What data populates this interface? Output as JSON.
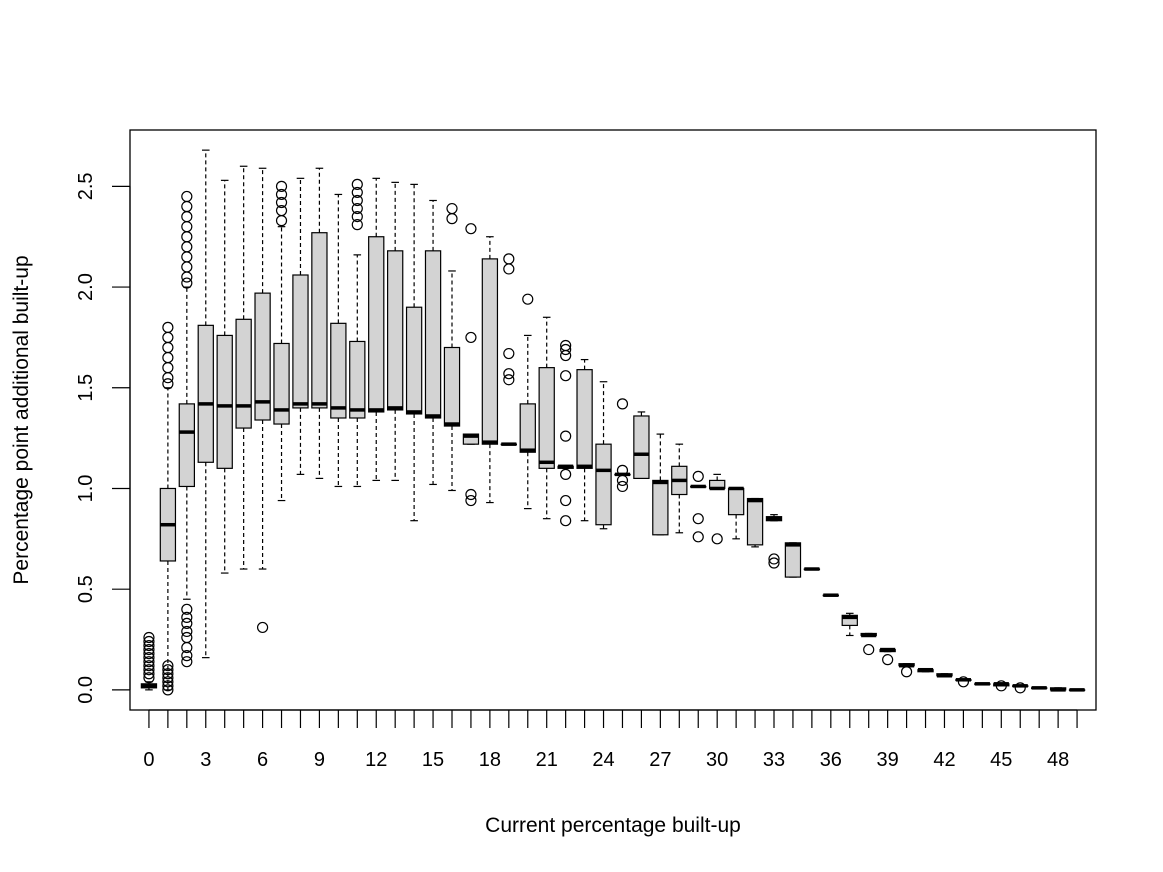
{
  "chart_data": {
    "type": "boxplot",
    "xlabel": "Current percentage built-up",
    "ylabel": "Percentage point additional built-up",
    "ylim": [
      -0.1,
      2.78
    ],
    "xlim": [
      -1,
      50
    ],
    "x_ticks": [
      0,
      3,
      6,
      9,
      12,
      15,
      18,
      21,
      24,
      27,
      30,
      33,
      36,
      39,
      42,
      45,
      48
    ],
    "y_ticks": [
      0.0,
      0.5,
      1.0,
      1.5,
      2.0,
      2.5
    ],
    "y_tick_labels": [
      "0.0",
      "0.5",
      "1.0",
      "1.5",
      "2.0",
      "2.5"
    ],
    "box_fill": "#d3d3d3",
    "boxes": [
      {
        "x": 0,
        "lw": 0.0,
        "q1": 0.01,
        "med": 0.02,
        "q3": 0.03,
        "uw": 0.04,
        "outliers": [
          0.06,
          0.08,
          0.1,
          0.12,
          0.14,
          0.16,
          0.18,
          0.2,
          0.22,
          0.24,
          0.26
        ]
      },
      {
        "x": 1,
        "lw": 0.0,
        "q1": 0.64,
        "med": 0.82,
        "q3": 1.0,
        "uw": 1.5,
        "outliers": [
          0.0,
          0.02,
          0.04,
          0.06,
          0.08,
          0.1,
          0.12,
          1.52,
          1.55,
          1.6,
          1.65,
          1.7,
          1.75,
          1.8
        ]
      },
      {
        "x": 2,
        "lw": 0.45,
        "q1": 1.01,
        "med": 1.28,
        "q3": 1.42,
        "uw": 2.0,
        "outliers": [
          0.14,
          0.17,
          0.21,
          0.26,
          0.29,
          0.33,
          0.36,
          0.4,
          2.02,
          2.05,
          2.1,
          2.15,
          2.2,
          2.25,
          2.3,
          2.35,
          2.4,
          2.45
        ]
      },
      {
        "x": 3,
        "lw": 0.16,
        "q1": 1.13,
        "med": 1.42,
        "q3": 1.81,
        "uw": 2.68,
        "outliers": []
      },
      {
        "x": 4,
        "lw": 0.58,
        "q1": 1.1,
        "med": 1.41,
        "q3": 1.76,
        "uw": 2.53,
        "outliers": []
      },
      {
        "x": 5,
        "lw": 0.6,
        "q1": 1.3,
        "med": 1.41,
        "q3": 1.84,
        "uw": 2.6,
        "outliers": []
      },
      {
        "x": 6,
        "lw": 0.6,
        "q1": 1.34,
        "med": 1.43,
        "q3": 1.97,
        "uw": 2.59,
        "outliers": [
          0.31
        ]
      },
      {
        "x": 7,
        "lw": 0.94,
        "q1": 1.32,
        "med": 1.39,
        "q3": 1.72,
        "uw": 2.3,
        "outliers": [
          2.33,
          2.38,
          2.42,
          2.46,
          2.5
        ]
      },
      {
        "x": 8,
        "lw": 1.07,
        "q1": 1.4,
        "med": 1.42,
        "q3": 2.06,
        "uw": 2.54,
        "outliers": []
      },
      {
        "x": 9,
        "lw": 1.05,
        "q1": 1.4,
        "med": 1.42,
        "q3": 2.27,
        "uw": 2.59,
        "outliers": []
      },
      {
        "x": 10,
        "lw": 1.01,
        "q1": 1.35,
        "med": 1.4,
        "q3": 1.82,
        "uw": 2.46,
        "outliers": []
      },
      {
        "x": 11,
        "lw": 1.01,
        "q1": 1.35,
        "med": 1.39,
        "q3": 1.73,
        "uw": 2.16,
        "outliers": [
          2.31,
          2.35,
          2.39,
          2.43,
          2.47,
          2.51
        ]
      },
      {
        "x": 12,
        "lw": 1.04,
        "q1": 1.38,
        "med": 1.39,
        "q3": 2.25,
        "uw": 2.54,
        "outliers": []
      },
      {
        "x": 13,
        "lw": 1.04,
        "q1": 1.39,
        "med": 1.4,
        "q3": 2.18,
        "uw": 2.52,
        "outliers": []
      },
      {
        "x": 14,
        "lw": 0.84,
        "q1": 1.37,
        "med": 1.38,
        "q3": 1.9,
        "uw": 2.51,
        "outliers": []
      },
      {
        "x": 15,
        "lw": 1.02,
        "q1": 1.35,
        "med": 1.36,
        "q3": 2.18,
        "uw": 2.43,
        "outliers": []
      },
      {
        "x": 16,
        "lw": 0.99,
        "q1": 1.31,
        "med": 1.32,
        "q3": 1.7,
        "uw": 2.08,
        "outliers": [
          2.34,
          2.39
        ]
      },
      {
        "x": 17,
        "lw": 1.22,
        "q1": 1.22,
        "med": 1.26,
        "q3": 1.27,
        "uw": 1.27,
        "outliers": [
          0.94,
          0.97,
          1.75,
          2.29
        ]
      },
      {
        "x": 18,
        "lw": 0.93,
        "q1": 1.22,
        "med": 1.23,
        "q3": 2.14,
        "uw": 2.25,
        "outliers": []
      },
      {
        "x": 19,
        "lw": 1.22,
        "q1": 1.22,
        "med": 1.22,
        "q3": 1.22,
        "uw": 1.22,
        "outliers": [
          1.54,
          1.57,
          1.67,
          2.09,
          2.14
        ]
      },
      {
        "x": 20,
        "lw": 0.9,
        "q1": 1.18,
        "med": 1.19,
        "q3": 1.42,
        "uw": 1.76,
        "outliers": [
          1.94
        ]
      },
      {
        "x": 21,
        "lw": 0.85,
        "q1": 1.1,
        "med": 1.13,
        "q3": 1.6,
        "uw": 1.85,
        "outliers": []
      },
      {
        "x": 22,
        "lw": 1.1,
        "q1": 1.1,
        "med": 1.11,
        "q3": 1.11,
        "uw": 1.11,
        "outliers": [
          0.84,
          0.94,
          1.07,
          1.26,
          1.56,
          1.66,
          1.69,
          1.71
        ]
      },
      {
        "x": 23,
        "lw": 0.84,
        "q1": 1.1,
        "med": 1.11,
        "q3": 1.59,
        "uw": 1.64,
        "outliers": []
      },
      {
        "x": 24,
        "lw": 0.8,
        "q1": 0.82,
        "med": 1.09,
        "q3": 1.22,
        "uw": 1.53,
        "outliers": []
      },
      {
        "x": 25,
        "lw": 1.07,
        "q1": 1.07,
        "med": 1.07,
        "q3": 1.07,
        "uw": 1.07,
        "outliers": [
          1.01,
          1.04,
          1.09,
          1.42
        ]
      },
      {
        "x": 26,
        "lw": 1.05,
        "q1": 1.05,
        "med": 1.17,
        "q3": 1.36,
        "uw": 1.38,
        "outliers": []
      },
      {
        "x": 27,
        "lw": 0.77,
        "q1": 0.77,
        "med": 1.03,
        "q3": 1.04,
        "uw": 1.27,
        "outliers": []
      },
      {
        "x": 28,
        "lw": 0.78,
        "q1": 0.97,
        "med": 1.04,
        "q3": 1.11,
        "uw": 1.22,
        "outliers": []
      },
      {
        "x": 29,
        "lw": 1.01,
        "q1": 1.01,
        "med": 1.01,
        "q3": 1.01,
        "uw": 1.01,
        "outliers": [
          0.76,
          0.85,
          1.06
        ]
      },
      {
        "x": 30,
        "lw": 1.0,
        "q1": 1.0,
        "med": 1.0,
        "q3": 1.04,
        "uw": 1.07,
        "outliers": [
          0.75
        ]
      },
      {
        "x": 31,
        "lw": 0.75,
        "q1": 0.87,
        "med": 1.0,
        "q3": 1.0,
        "uw": 1.0,
        "outliers": []
      },
      {
        "x": 32,
        "lw": 0.71,
        "q1": 0.72,
        "med": 0.94,
        "q3": 0.95,
        "uw": 0.95,
        "outliers": []
      },
      {
        "x": 33,
        "lw": 0.84,
        "q1": 0.84,
        "med": 0.85,
        "q3": 0.86,
        "uw": 0.87,
        "outliers": [
          0.63,
          0.65
        ]
      },
      {
        "x": 34,
        "lw": 0.56,
        "q1": 0.56,
        "med": 0.72,
        "q3": 0.73,
        "uw": 0.73,
        "outliers": []
      },
      {
        "x": 35,
        "lw": 0.6,
        "q1": 0.6,
        "med": 0.6,
        "q3": 0.6,
        "uw": 0.6,
        "outliers": []
      },
      {
        "x": 36,
        "lw": 0.47,
        "q1": 0.47,
        "med": 0.47,
        "q3": 0.47,
        "uw": 0.47,
        "outliers": []
      },
      {
        "x": 37,
        "lw": 0.27,
        "q1": 0.32,
        "med": 0.36,
        "q3": 0.37,
        "uw": 0.38,
        "outliers": []
      },
      {
        "x": 38,
        "lw": 0.27,
        "q1": 0.27,
        "med": 0.27,
        "q3": 0.28,
        "uw": 0.28,
        "outliers": [
          0.2
        ]
      },
      {
        "x": 39,
        "lw": 0.19,
        "q1": 0.19,
        "med": 0.2,
        "q3": 0.2,
        "uw": 0.2,
        "outliers": [
          0.15
        ]
      },
      {
        "x": 40,
        "lw": 0.12,
        "q1": 0.12,
        "med": 0.12,
        "q3": 0.13,
        "uw": 0.13,
        "outliers": [
          0.09
        ]
      },
      {
        "x": 41,
        "lw": 0.09,
        "q1": 0.09,
        "med": 0.1,
        "q3": 0.1,
        "uw": 0.1,
        "outliers": []
      },
      {
        "x": 42,
        "lw": 0.07,
        "q1": 0.07,
        "med": 0.07,
        "q3": 0.08,
        "uw": 0.08,
        "outliers": []
      },
      {
        "x": 43,
        "lw": 0.05,
        "q1": 0.05,
        "med": 0.05,
        "q3": 0.05,
        "uw": 0.05,
        "outliers": [
          0.04
        ]
      },
      {
        "x": 44,
        "lw": 0.03,
        "q1": 0.03,
        "med": 0.03,
        "q3": 0.03,
        "uw": 0.03,
        "outliers": []
      },
      {
        "x": 45,
        "lw": 0.02,
        "q1": 0.02,
        "med": 0.03,
        "q3": 0.03,
        "uw": 0.03,
        "outliers": [
          0.02
        ]
      },
      {
        "x": 46,
        "lw": 0.02,
        "q1": 0.02,
        "med": 0.02,
        "q3": 0.02,
        "uw": 0.02,
        "outliers": [
          0.01
        ]
      },
      {
        "x": 47,
        "lw": 0.01,
        "q1": 0.01,
        "med": 0.01,
        "q3": 0.01,
        "uw": 0.01,
        "outliers": []
      },
      {
        "x": 48,
        "lw": 0.0,
        "q1": 0.0,
        "med": 0.0,
        "q3": 0.01,
        "uw": 0.01,
        "outliers": []
      },
      {
        "x": 49,
        "lw": 0.0,
        "q1": 0.0,
        "med": 0.0,
        "q3": 0.0,
        "uw": 0.0,
        "outliers": []
      }
    ]
  }
}
